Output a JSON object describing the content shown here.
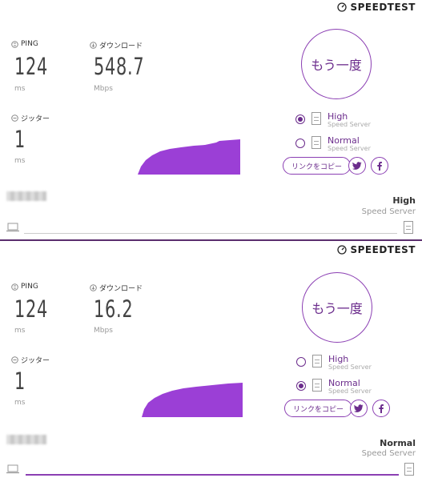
{
  "brand_name": "SPEEDTEST",
  "colors": {
    "accent": "#8b3fb3",
    "accent_dark": "#6b2c8c",
    "divider": "#5a2d6e"
  },
  "labels": {
    "ping": "PING",
    "download": "ダウンロード",
    "jitter": "ジッター",
    "test_again": "もう一度",
    "copy_link": "リンクをコピー",
    "speed_server": "Speed Server",
    "high": "High",
    "normal": "Normal"
  },
  "panels": [
    {
      "ping": {
        "value": "124",
        "unit": "ms"
      },
      "download": {
        "value": "548.7",
        "unit": "Mbps"
      },
      "jitter": {
        "value": "1",
        "unit": "ms"
      },
      "servers": [
        {
          "name": "High",
          "sub": "Speed Server",
          "selected": true
        },
        {
          "name": "Normal",
          "sub": "Speed Server",
          "selected": false
        }
      ],
      "current_server": {
        "name": "High",
        "sub": "Speed Server"
      },
      "progress": 0
    },
    {
      "ping": {
        "value": "124",
        "unit": "ms"
      },
      "download": {
        "value": "16.2",
        "unit": "Mbps"
      },
      "jitter": {
        "value": "1",
        "unit": "ms"
      },
      "servers": [
        {
          "name": "High",
          "sub": "Speed Server",
          "selected": false
        },
        {
          "name": "Normal",
          "sub": "Speed Server",
          "selected": true
        }
      ],
      "current_server": {
        "name": "Normal",
        "sub": "Speed Server"
      },
      "progress": 1
    }
  ],
  "icons": [
    "speedometer-icon",
    "ping-icon",
    "download-icon",
    "jitter-icon",
    "twitter-icon",
    "facebook-icon",
    "laptop-icon",
    "server-doc-icon"
  ]
}
